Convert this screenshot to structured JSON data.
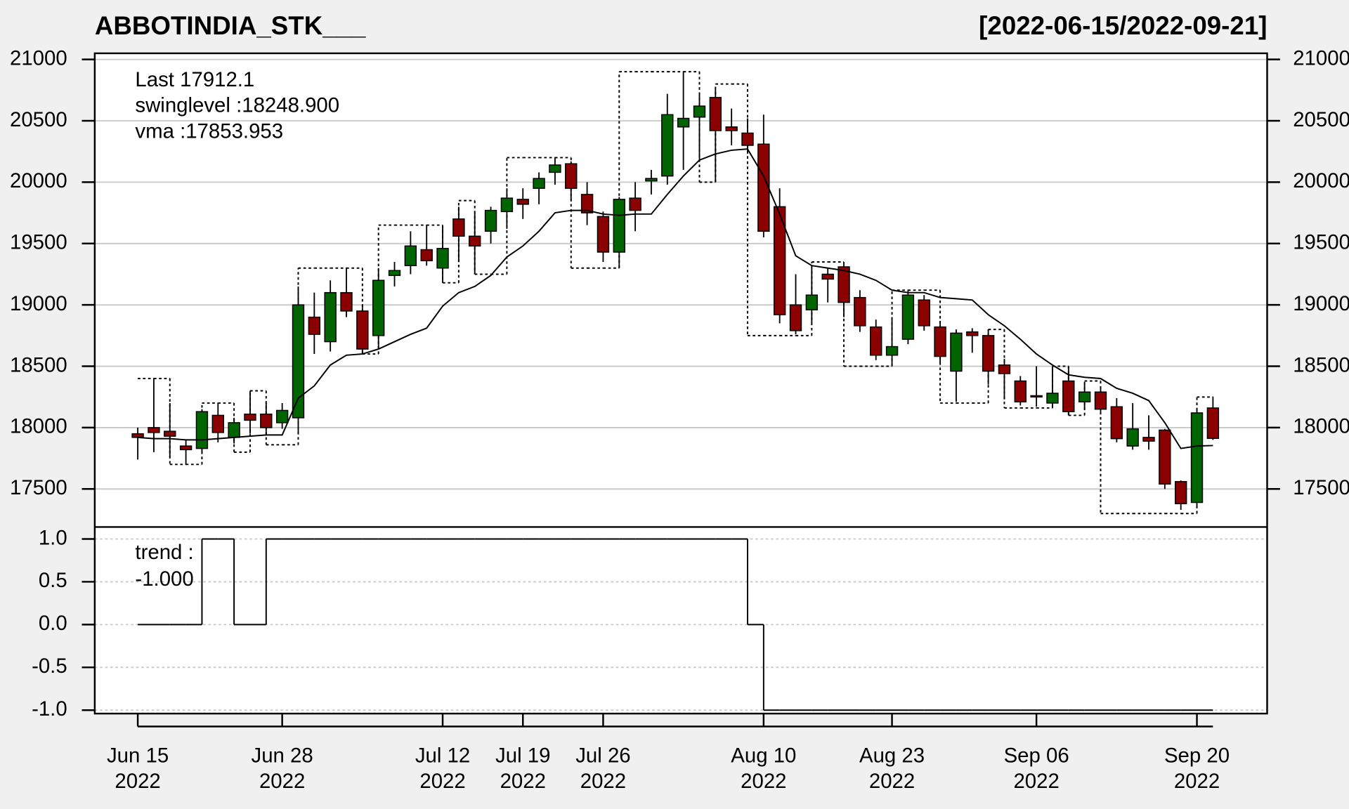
{
  "chart_data": {
    "type": "candlestick",
    "title": "ABBOTINDIA_STK___",
    "subtitle": "[2022-06-15/2022-09-21]",
    "categories": [
      "Jun 15\n2022",
      null,
      null,
      null,
      null,
      null,
      null,
      null,
      null,
      "Jun 28\n2022",
      null,
      null,
      null,
      null,
      null,
      null,
      null,
      null,
      null,
      "Jul 12\n2022",
      null,
      null,
      null,
      null,
      "Jul 19\n2022",
      null,
      null,
      null,
      null,
      "Jul 26\n2022",
      null,
      null,
      null,
      null,
      null,
      null,
      null,
      null,
      null,
      "Aug 10\n2022",
      null,
      null,
      null,
      null,
      null,
      null,
      null,
      "Aug 23\n2022",
      null,
      null,
      null,
      null,
      null,
      null,
      null,
      null,
      "Sep 06\n2022",
      null,
      null,
      null,
      null,
      null,
      null,
      null,
      null,
      null,
      "Sep 20\n2022",
      null
    ],
    "open": [
      17950,
      18000,
      17970,
      17850,
      17830,
      18100,
      17920,
      18110,
      18110,
      18040,
      18080,
      18900,
      18700,
      19100,
      18950,
      18750,
      19240,
      19320,
      19450,
      19300,
      19700,
      19560,
      19600,
      19760,
      19860,
      19950,
      20080,
      20150,
      19900,
      19720,
      19430,
      19870,
      20010,
      20050,
      20450,
      20530,
      20690,
      20450,
      20400,
      20310,
      19800,
      19000,
      18960,
      19250,
      19310,
      19060,
      18820,
      18590,
      18720,
      19040,
      18820,
      18460,
      18780,
      18750,
      18510,
      18380,
      18260,
      18200,
      18380,
      18210,
      18290,
      18170,
      17850,
      17920,
      17980,
      17560,
      17390,
      18160
    ],
    "high": [
      18000,
      18400,
      18200,
      17900,
      18150,
      18200,
      18080,
      18300,
      18200,
      18200,
      19150,
      19100,
      19200,
      19300,
      19000,
      19300,
      19350,
      19600,
      19650,
      19650,
      19800,
      19750,
      19800,
      19950,
      19950,
      20080,
      20200,
      20170,
      20000,
      19760,
      19880,
      20000,
      20100,
      20720,
      20900,
      20720,
      20760,
      20600,
      20520,
      20550,
      19950,
      19250,
      19300,
      19300,
      19330,
      19120,
      18880,
      18900,
      19120,
      19080,
      18870,
      18800,
      18810,
      18800,
      18560,
      18420,
      18500,
      18500,
      18500,
      18360,
      18320,
      18240,
      18200,
      18100,
      17990,
      17570,
      18150,
      18250
    ],
    "low": [
      17740,
      17800,
      17760,
      17700,
      17800,
      17880,
      17870,
      17950,
      17950,
      17990,
      17960,
      18600,
      18620,
      18900,
      18600,
      18650,
      19150,
      19250,
      19320,
      19180,
      19350,
      19250,
      19500,
      19620,
      19700,
      19820,
      19980,
      19850,
      19650,
      19350,
      19300,
      19600,
      19900,
      19980,
      20100,
      20180,
      20000,
      20300,
      20250,
      19550,
      18850,
      18760,
      18850,
      19020,
      18900,
      18780,
      18550,
      18520,
      18680,
      18790,
      18530,
      18210,
      18610,
      18350,
      18230,
      18180,
      18170,
      18180,
      18100,
      18150,
      18120,
      17880,
      17820,
      17820,
      17500,
      17330,
      17350,
      17900
    ],
    "close": [
      17920,
      17960,
      17930,
      17820,
      18130,
      17960,
      18040,
      18060,
      18000,
      18140,
      19000,
      18760,
      19100,
      18950,
      18640,
      19200,
      19280,
      19480,
      19360,
      19460,
      19560,
      19480,
      19770,
      19870,
      19820,
      20030,
      20140,
      19950,
      19750,
      19430,
      19860,
      19770,
      20030,
      20550,
      20520,
      20620,
      20420,
      20420,
      20300,
      19600,
      18920,
      18790,
      19080,
      19210,
      19020,
      18830,
      18590,
      18660,
      19080,
      18830,
      18580,
      18770,
      18750,
      18460,
      18440,
      18210,
      18250,
      18280,
      18130,
      18290,
      18150,
      17910,
      17990,
      17890,
      17540,
      17380,
      18120,
      17912.1
    ],
    "up_color": "#006400",
    "down_color": "#8b0000",
    "ylim": [
      17190,
      21050
    ],
    "yticks": [
      17500,
      18000,
      18500,
      19000,
      19500,
      20000,
      20500,
      21000
    ],
    "grid": true,
    "vma": {
      "color": "#000000",
      "values": [
        17920,
        17910,
        17910,
        17900,
        17900,
        17910,
        17920,
        17930,
        17940,
        17940,
        18240,
        18340,
        18510,
        18590,
        18600,
        18640,
        18700,
        18760,
        18810,
        18990,
        19100,
        19150,
        19240,
        19390,
        19480,
        19600,
        19750,
        19770,
        19770,
        19740,
        19730,
        19740,
        19740,
        19900,
        20050,
        20180,
        20230,
        20260,
        20270,
        20050,
        19740,
        19400,
        19320,
        19300,
        19280,
        19250,
        19200,
        19120,
        19100,
        19100,
        19060,
        19050,
        19040,
        18920,
        18830,
        18720,
        18600,
        18510,
        18430,
        18410,
        18400,
        18320,
        18280,
        18220,
        18040,
        17830,
        17850,
        17853.953
      ]
    },
    "swinglevel": {
      "color": "#000000",
      "values": [
        18400,
        18400,
        17700,
        17700,
        18200,
        18200,
        17800,
        18300,
        17860,
        17860,
        19300,
        19300,
        19300,
        19300,
        18600,
        19650,
        19650,
        19650,
        19650,
        19180,
        19850,
        19250,
        19250,
        20200,
        20200,
        20200,
        20200,
        19300,
        19300,
        19300,
        20900,
        20900,
        20900,
        20900,
        20900,
        20000,
        20800,
        20800,
        18750,
        18750,
        18750,
        18750,
        19350,
        19350,
        18500,
        18500,
        18500,
        19120,
        19120,
        19120,
        18200,
        18200,
        18200,
        18800,
        18160,
        18160,
        18160,
        18500,
        18100,
        18380,
        17300,
        17300,
        17300,
        17300,
        17300,
        17300,
        18248.9,
        18248.9
      ]
    },
    "legend": [
      "Last 17912.1",
      "swinglevel :18248.900",
      "vma :17853.953"
    ],
    "last_color": "#8b0000",
    "trend": {
      "type": "step",
      "legend": [
        "trend :",
        "-1.000"
      ],
      "color": "#000000",
      "values": [
        0,
        0,
        0,
        0,
        1,
        1,
        0,
        0,
        1,
        1,
        1,
        1,
        1,
        1,
        1,
        1,
        1,
        1,
        1,
        1,
        1,
        1,
        1,
        1,
        1,
        1,
        1,
        1,
        1,
        1,
        1,
        1,
        1,
        1,
        1,
        1,
        1,
        1,
        0,
        -1,
        -1,
        -1,
        -1,
        -1,
        -1,
        -1,
        -1,
        -1,
        -1,
        -1,
        -1,
        -1,
        -1,
        -1,
        -1,
        -1,
        -1,
        -1,
        -1,
        -1,
        -1,
        -1,
        -1,
        -1,
        -1,
        -1,
        -1,
        -1
      ],
      "ylim": [
        -1.04,
        1.14
      ],
      "yticks": [
        {
          "value": -1,
          "label": "-1.0"
        },
        {
          "value": -0.5,
          "label": "-0.5"
        },
        {
          "value": 0,
          "label": "0.0"
        },
        {
          "value": 0.5,
          "label": "0.5"
        },
        {
          "value": 1,
          "label": "1.0"
        }
      ],
      "grid": true
    }
  }
}
